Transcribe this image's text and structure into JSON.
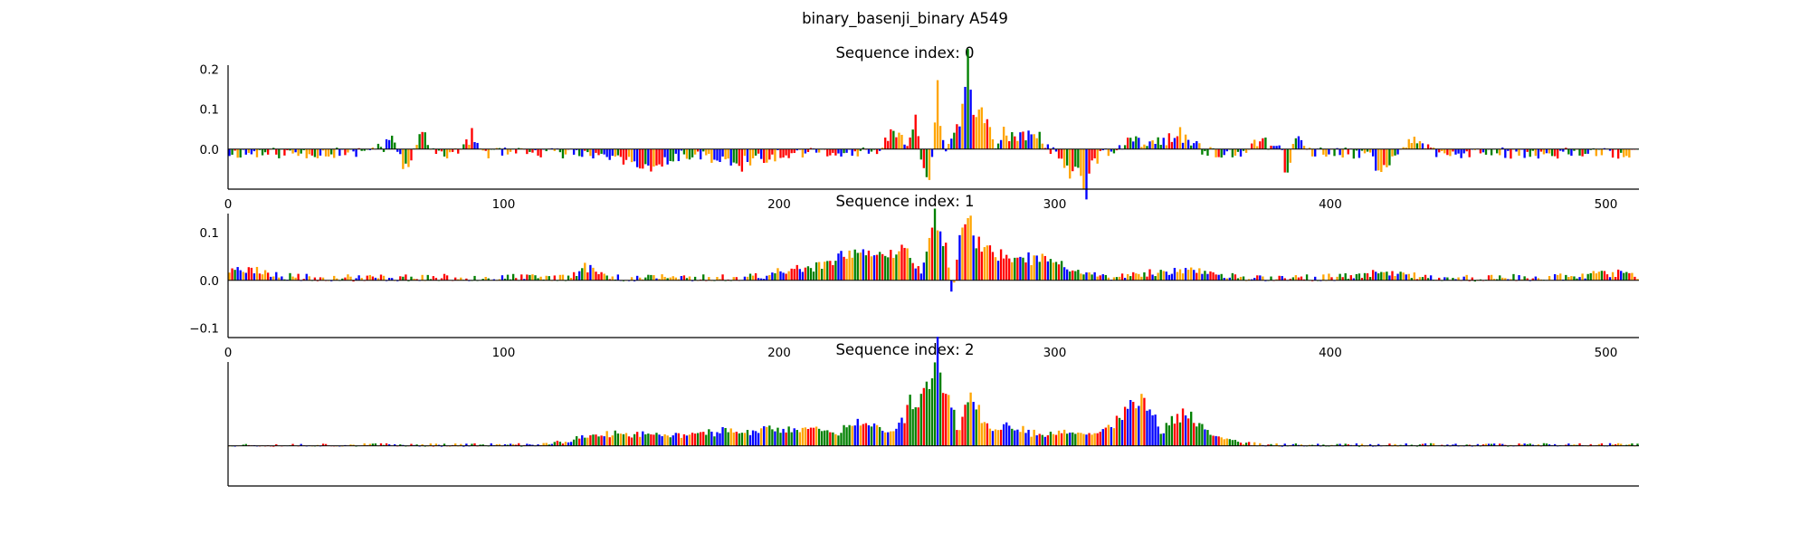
{
  "figure": {
    "title": "binary_basenji_binary A549"
  },
  "colors": {
    "A": "#008000",
    "C": "#0000ff",
    "G": "#ffa500",
    "T": "#ff0000",
    "axis": "#000000"
  },
  "chart_data": [
    {
      "type": "sequence-logo",
      "title": "Sequence index: 0",
      "sequence_length": 512,
      "xlim": [
        0,
        512
      ],
      "ylim": [
        -0.1,
        0.21
      ],
      "xticks": [
        0,
        100,
        200,
        300,
        400,
        500
      ],
      "yticks": [
        0.0,
        0.1,
        0.2
      ],
      "ytick_labels": [
        "0.0",
        "0.1",
        "0.2"
      ],
      "seed": 11,
      "background_amplitude": 0.014,
      "background_bias": -0.35,
      "peaks": [
        {
          "pos": 60,
          "height": 0.04,
          "width": 5
        },
        {
          "pos": 64,
          "height": -0.09,
          "width": 2
        },
        {
          "pos": 70,
          "height": 0.075,
          "width": 2
        },
        {
          "pos": 88,
          "height": 0.05,
          "width": 2
        },
        {
          "pos": 150,
          "height": -0.045,
          "width": 8
        },
        {
          "pos": 185,
          "height": -0.035,
          "width": 8
        },
        {
          "pos": 242,
          "height": 0.06,
          "width": 4
        },
        {
          "pos": 249,
          "height": 0.11,
          "width": 1
        },
        {
          "pos": 254,
          "height": -0.085,
          "width": 2
        },
        {
          "pos": 257,
          "height": 0.215,
          "width": 1
        },
        {
          "pos": 265,
          "height": 0.11,
          "width": 2
        },
        {
          "pos": 268,
          "height": 0.2,
          "width": 1
        },
        {
          "pos": 272,
          "height": 0.12,
          "width": 3
        },
        {
          "pos": 278,
          "height": 0.07,
          "width": 3
        },
        {
          "pos": 278,
          "height": -0.085,
          "width": 1
        },
        {
          "pos": 290,
          "height": 0.06,
          "width": 6
        },
        {
          "pos": 307,
          "height": -0.06,
          "width": 5
        },
        {
          "pos": 311,
          "height": -0.09,
          "width": 1
        },
        {
          "pos": 330,
          "height": 0.04,
          "width": 6
        },
        {
          "pos": 345,
          "height": 0.05,
          "width": 5
        },
        {
          "pos": 375,
          "height": 0.04,
          "width": 4
        },
        {
          "pos": 384,
          "height": -0.1,
          "width": 1
        },
        {
          "pos": 388,
          "height": 0.05,
          "width": 2
        },
        {
          "pos": 418,
          "height": -0.05,
          "width": 3
        },
        {
          "pos": 430,
          "height": 0.04,
          "width": 4
        }
      ]
    },
    {
      "type": "sequence-logo",
      "title": "Sequence index: 1",
      "sequence_length": 512,
      "xlim": [
        0,
        512
      ],
      "ylim": [
        -0.12,
        0.14
      ],
      "xticks": [
        0,
        100,
        200,
        300,
        400,
        500
      ],
      "yticks": [
        -0.1,
        0.0,
        0.1
      ],
      "ytick_labels": [
        "−0.1",
        "0.0",
        "0.1"
      ],
      "seed": 23,
      "background_amplitude": 0.008,
      "background_bias": 0.35,
      "peaks": [
        {
          "pos": 5,
          "height": 0.025,
          "width": 8
        },
        {
          "pos": 130,
          "height": 0.03,
          "width": 3
        },
        {
          "pos": 214,
          "height": 0.03,
          "width": 12
        },
        {
          "pos": 230,
          "height": 0.05,
          "width": 8
        },
        {
          "pos": 246,
          "height": 0.07,
          "width": 6
        },
        {
          "pos": 256,
          "height": 0.13,
          "width": 2
        },
        {
          "pos": 258,
          "height": -0.045,
          "width": 1
        },
        {
          "pos": 260,
          "height": 0.1,
          "width": 2
        },
        {
          "pos": 250,
          "height": -0.05,
          "width": 2
        },
        {
          "pos": 262,
          "height": -0.12,
          "width": 1
        },
        {
          "pos": 267,
          "height": 0.14,
          "width": 2
        },
        {
          "pos": 272,
          "height": 0.05,
          "width": 4
        },
        {
          "pos": 282,
          "height": 0.05,
          "width": 10
        },
        {
          "pos": 300,
          "height": 0.03,
          "width": 8
        },
        {
          "pos": 345,
          "height": 0.02,
          "width": 10
        },
        {
          "pos": 420,
          "height": 0.01,
          "width": 10
        },
        {
          "pos": 500,
          "height": 0.015,
          "width": 8
        }
      ]
    },
    {
      "type": "sequence-logo",
      "title": "Sequence index: 2",
      "sequence_length": 512,
      "xlim": [
        0,
        512
      ],
      "ylim": [
        -0.11,
        0.23
      ],
      "xticks": [],
      "yticks": [],
      "ytick_labels": [],
      "seed": 37,
      "background_amplitude": 0.005,
      "background_bias": 0.25,
      "peaks": [
        {
          "pos": 140,
          "height": 0.04,
          "width": 12
        },
        {
          "pos": 175,
          "height": 0.04,
          "width": 14
        },
        {
          "pos": 205,
          "height": 0.05,
          "width": 14
        },
        {
          "pos": 220,
          "height": -0.02,
          "width": 2
        },
        {
          "pos": 232,
          "height": 0.07,
          "width": 8
        },
        {
          "pos": 247,
          "height": 0.11,
          "width": 3
        },
        {
          "pos": 251,
          "height": 0.16,
          "width": 2
        },
        {
          "pos": 255,
          "height": 0.13,
          "width": 2
        },
        {
          "pos": 250,
          "height": -0.09,
          "width": 1
        },
        {
          "pos": 257,
          "height": 0.22,
          "width": 1
        },
        {
          "pos": 261,
          "height": 0.17,
          "width": 3
        },
        {
          "pos": 265,
          "height": -0.08,
          "width": 2
        },
        {
          "pos": 269,
          "height": 0.15,
          "width": 3
        },
        {
          "pos": 282,
          "height": 0.06,
          "width": 8
        },
        {
          "pos": 310,
          "height": 0.05,
          "width": 12
        },
        {
          "pos": 326,
          "height": 0.09,
          "width": 4
        },
        {
          "pos": 333,
          "height": 0.12,
          "width": 4
        },
        {
          "pos": 338,
          "height": -0.06,
          "width": 1
        },
        {
          "pos": 346,
          "height": 0.09,
          "width": 5
        },
        {
          "pos": 355,
          "height": 0.03,
          "width": 8
        }
      ]
    }
  ]
}
